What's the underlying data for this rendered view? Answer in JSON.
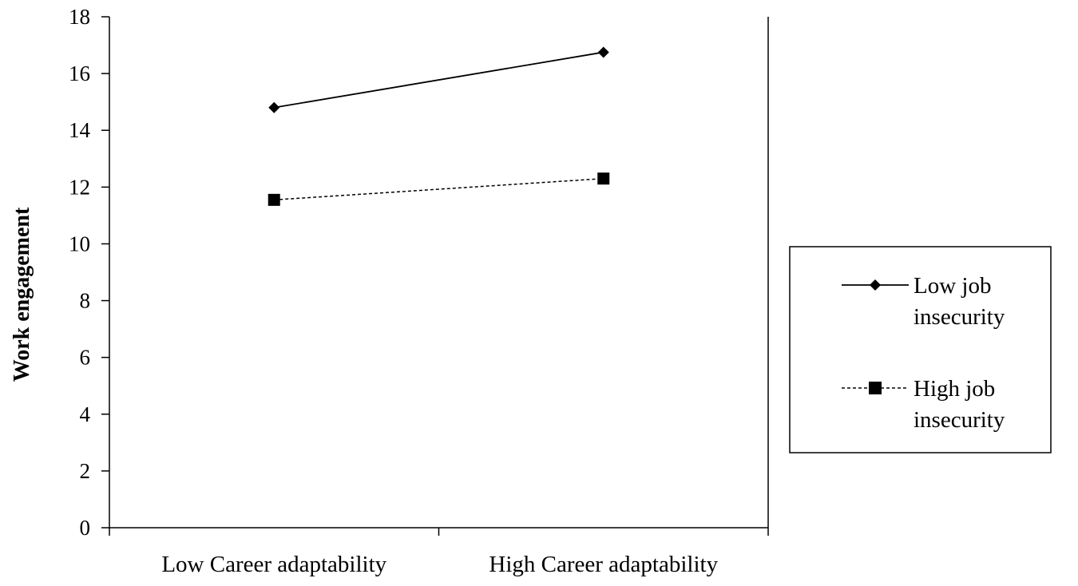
{
  "chart_data": {
    "type": "line",
    "title": "",
    "xlabel": "",
    "ylabel": "Work engagement",
    "categories": [
      "Low Career adaptability",
      "High Career adaptability"
    ],
    "ylim": [
      0,
      18
    ],
    "yticks": [
      0,
      2,
      4,
      6,
      8,
      10,
      12,
      14,
      16,
      18
    ],
    "grid": false,
    "legend": {
      "placement": "right",
      "entries": [
        {
          "line1": "Low job",
          "line2": "insecurity"
        },
        {
          "line1": "High job",
          "line2": "insecurity"
        }
      ]
    },
    "series": [
      {
        "name": "Low job insecurity",
        "values": [
          14.8,
          16.75
        ],
        "marker": "diamond",
        "line": "solid",
        "color": "#000000"
      },
      {
        "name": "High job insecurity",
        "values": [
          11.55,
          12.3
        ],
        "marker": "square",
        "line": "dashed",
        "color": "#000000"
      }
    ]
  }
}
